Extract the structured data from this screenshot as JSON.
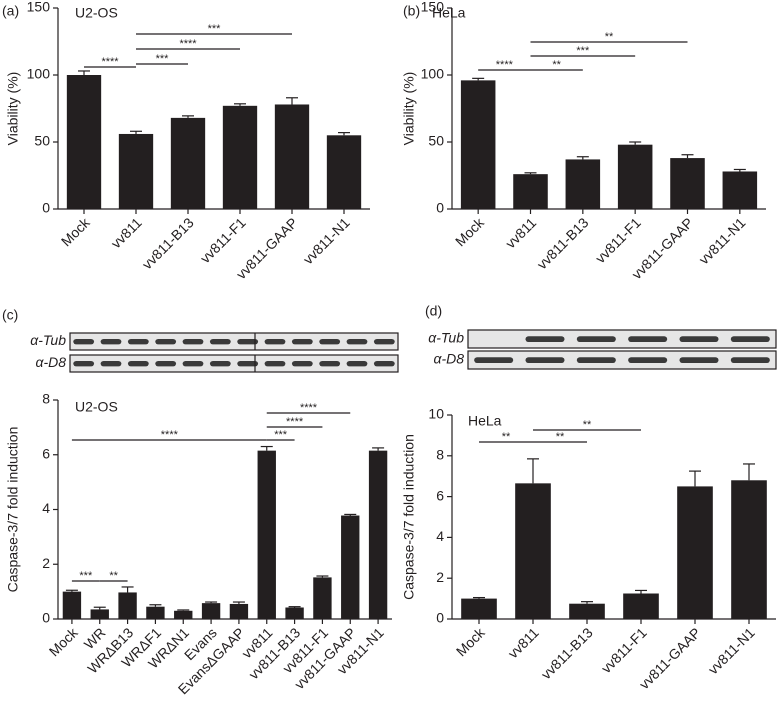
{
  "chart_data": [
    {
      "type": "bar",
      "panel": "(a)",
      "subtitle": "U2-OS",
      "ylabel": "Viability (%)",
      "categories": [
        "Mock",
        "vv811",
        "vv811-B13",
        "vv811-F1",
        "vv811-GAAP",
        "vv811-N1"
      ],
      "values": [
        100,
        56,
        68,
        77,
        78,
        55
      ],
      "errors": [
        3,
        2,
        1.5,
        1.5,
        5,
        2
      ],
      "color": "#231f20",
      "ylim": [
        0,
        150
      ],
      "yticks": [
        0,
        50,
        100,
        150
      ],
      "annotations": [
        "****",
        "***",
        "****",
        "***"
      ]
    },
    {
      "type": "bar",
      "panel": "(b)",
      "subtitle": "HeLa",
      "ylabel": "Viability (%)",
      "categories": [
        "Mock",
        "vv811",
        "vv811-B13",
        "vv811-F1",
        "vv811-GAAP",
        "vv811-N1"
      ],
      "values": [
        96,
        26,
        37,
        48,
        38,
        28
      ],
      "errors": [
        1.5,
        1,
        2,
        2,
        2.5,
        1.5
      ],
      "color": "#231f20",
      "ylim": [
        0,
        150
      ],
      "yticks": [
        0,
        50,
        100,
        150
      ],
      "annotations": [
        "****",
        "**",
        "***",
        "**"
      ]
    },
    {
      "type": "bar",
      "panel": "(c)",
      "subtitle": "U2-OS",
      "ylabel": "Caspase-3/7 fold induction",
      "blot_labels": [
        "α-Tub",
        "α-D8"
      ],
      "categories": [
        "Mock",
        "WR",
        "WRΔB13",
        "WRΔF1",
        "WRΔN1",
        "Evans",
        "EvansΔGAAP",
        "vv811",
        "vv811-B13",
        "vv811-F1",
        "vv811-GAAP",
        "vv811-N1"
      ],
      "values": [
        1.0,
        0.35,
        0.97,
        0.45,
        0.3,
        0.58,
        0.55,
        6.15,
        0.42,
        1.52,
        3.78,
        6.15
      ],
      "errors": [
        0.05,
        0.08,
        0.2,
        0.07,
        0.03,
        0.04,
        0.07,
        0.15,
        0.03,
        0.05,
        0.04,
        0.1
      ],
      "color": "#231f20",
      "ylim": [
        0,
        8
      ],
      "yticks": [
        0,
        2,
        4,
        6,
        8
      ],
      "annotations": [
        "***",
        "**",
        "****",
        "***",
        "****",
        "****"
      ]
    },
    {
      "type": "bar",
      "panel": "(d)",
      "subtitle": "HeLa",
      "ylabel": "Caspase-3/7 fold induction",
      "blot_labels": [
        "α-Tub",
        "α-D8"
      ],
      "categories": [
        "Mock",
        "vv811",
        "vv811-B13",
        "vv811-F1",
        "vv811-GAAP",
        "vv811-N1"
      ],
      "values": [
        1.0,
        6.65,
        0.75,
        1.25,
        6.5,
        6.8
      ],
      "errors": [
        0.05,
        1.2,
        0.1,
        0.15,
        0.75,
        0.8
      ],
      "color": "#231f20",
      "ylim": [
        0,
        10
      ],
      "yticks": [
        0,
        2,
        4,
        6,
        8,
        10
      ],
      "annotations": [
        "**",
        "**",
        "**"
      ]
    }
  ]
}
